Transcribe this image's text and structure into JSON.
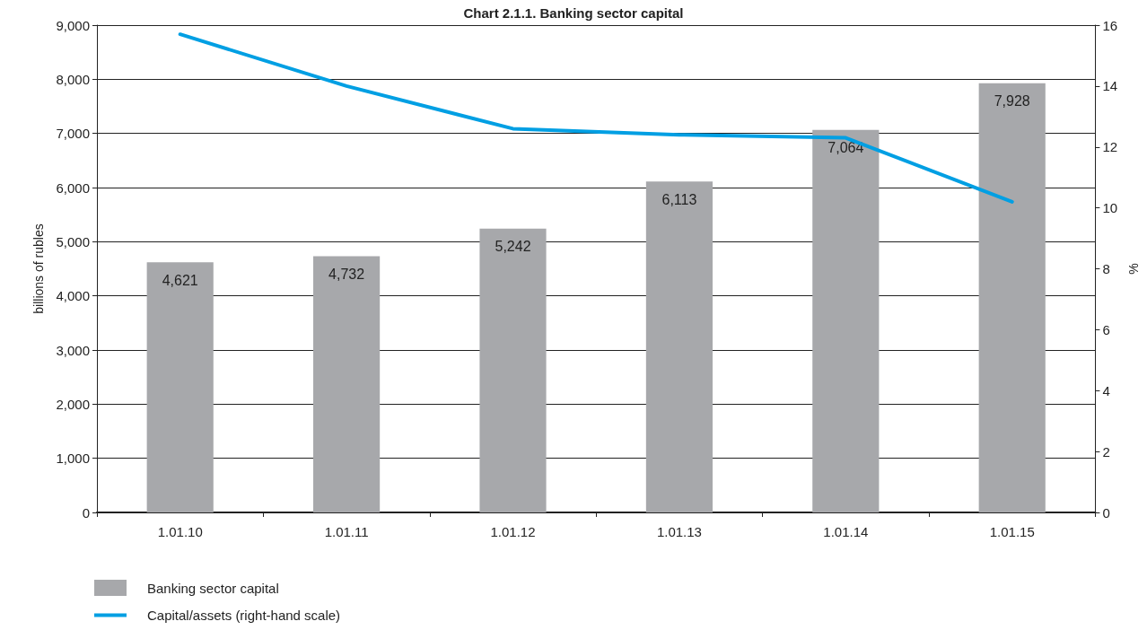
{
  "chart_data": {
    "type": "bar",
    "title": "Chart 2.1.1. Banking sector capital",
    "ylabel": "billions of rubles",
    "y2label": "%",
    "categories": [
      "1.01.10",
      "1.01.11",
      "1.01.12",
      "1.01.13",
      "1.01.14",
      "1.01.15"
    ],
    "series": [
      {
        "name": "Banking sector capital",
        "color": "#a7a8ab",
        "values": [
          4621,
          4732,
          5242,
          6113,
          7064,
          7928
        ],
        "value_labels": [
          "4,621",
          "4,732",
          "5,242",
          "6,113",
          "7,064",
          "7,928"
        ]
      },
      {
        "name": "Capital/assets (right-hand scale)",
        "type": "line",
        "axis": "y2",
        "color": "#009fe3",
        "values": [
          15.7,
          14.0,
          12.6,
          12.4,
          12.3,
          10.2
        ]
      }
    ],
    "ylim": [
      0,
      9000
    ],
    "yticks": [
      0,
      {
        "value": 1000,
        "label": "1,000"
      },
      {
        "value": 2000,
        "label": "2,000"
      },
      {
        "value": 3000,
        "label": "3,000"
      },
      {
        "value": 4000,
        "label": "4,000"
      },
      {
        "value": 5000,
        "label": "5,000"
      },
      {
        "value": 6000,
        "label": "6,000"
      },
      {
        "value": 7000,
        "label": "7,000"
      },
      {
        "value": 8000,
        "label": "8,000"
      },
      {
        "value": 9000,
        "label": "9,000"
      }
    ],
    "y2lim": [
      0,
      16
    ],
    "y2ticks": [
      0,
      2,
      4,
      6,
      8,
      10,
      12,
      14,
      16
    ],
    "grid": "y",
    "legend": "bottom left",
    "marker": "none",
    "line_style": "solid"
  }
}
